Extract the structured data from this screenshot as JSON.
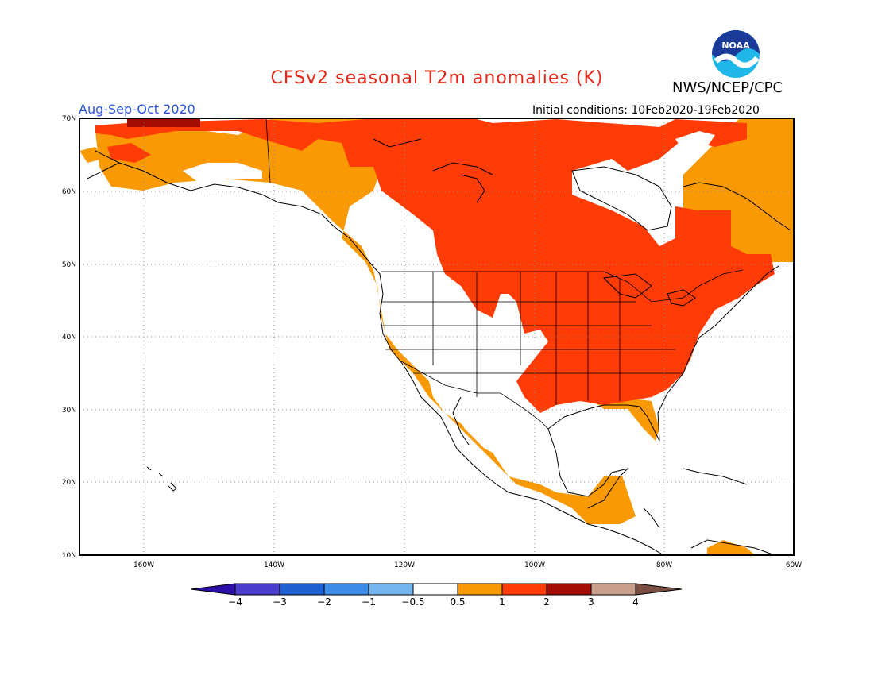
{
  "title": "CFSv2 seasonal T2m anomalies (K)",
  "agency": "NWS/NCEP/CPC",
  "logo_text": "NOAA",
  "period": "Aug-Sep-Oct 2020",
  "initial_conditions": "Initial conditions: 10Feb2020-19Feb2020",
  "lat_labels": [
    "70N",
    "60N",
    "50N",
    "40N",
    "30N",
    "20N",
    "10N"
  ],
  "lon_labels": [
    "160W",
    "140W",
    "120W",
    "100W",
    "80W",
    "60W"
  ],
  "colorbar": {
    "ticks": [
      "-4",
      "-3",
      "-2",
      "-1",
      "-0.5",
      "0.5",
      "1",
      "2",
      "3",
      "4"
    ],
    "colors": [
      "#2b0fa8",
      "#4a3ccc",
      "#1f5fd4",
      "#3c8de8",
      "#74b5f0",
      "#ffffff",
      "#f99a05",
      "#ff3b06",
      "#a30b04",
      "#c9a08c",
      "#7a4e40"
    ]
  },
  "legend_colors": {
    "0.5-1": "#f99a05",
    "1-2": "#ff3b06",
    "2-3": "#a30b04"
  }
}
